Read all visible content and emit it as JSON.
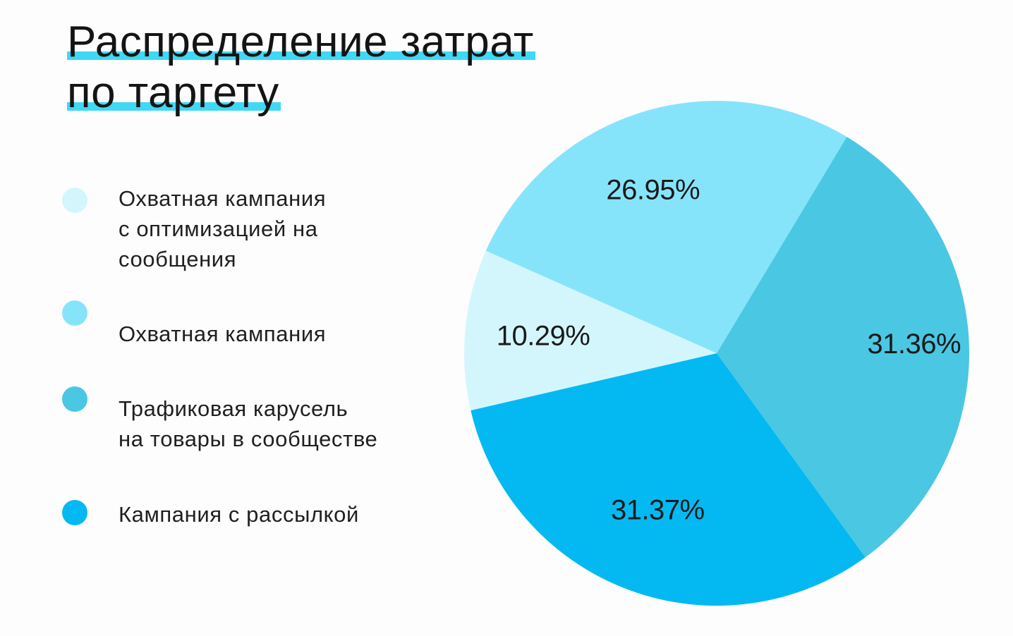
{
  "title_lines": [
    "Распределение затрат",
    "по таргету"
  ],
  "chart_data": {
    "type": "pie",
    "title": "Распределение затрат по таргету",
    "slices": [
      {
        "label": "Охватная кампания с оптимизацией на сообщения",
        "value": 10.29,
        "display": "10.29%",
        "color": "#d3f6fd"
      },
      {
        "label": "Охватная кампания",
        "value": 26.95,
        "display": "26.95%",
        "color": "#86e4fa"
      },
      {
        "label": "Трафиковая карусель на товары в сообществе",
        "value": 31.36,
        "display": "31.36%",
        "color": "#4ac7e3"
      },
      {
        "label": "Кампания с рассылкой",
        "value": 31.37,
        "display": "31.37%",
        "color": "#04b9f2"
      }
    ],
    "legend_placement": "left"
  },
  "legend": [
    {
      "label": "Охватная кампания\nс оптимизацией на\nсообщения",
      "color": "#d3f6fd"
    },
    {
      "label": "Охватная кампания",
      "color": "#86e4fa"
    },
    {
      "label": "Трафиковая карусель\nна товары в сообществе",
      "color": "#4ac7e3"
    },
    {
      "label": "Кампания с рассылкой",
      "color": "#04b9f2"
    }
  ]
}
